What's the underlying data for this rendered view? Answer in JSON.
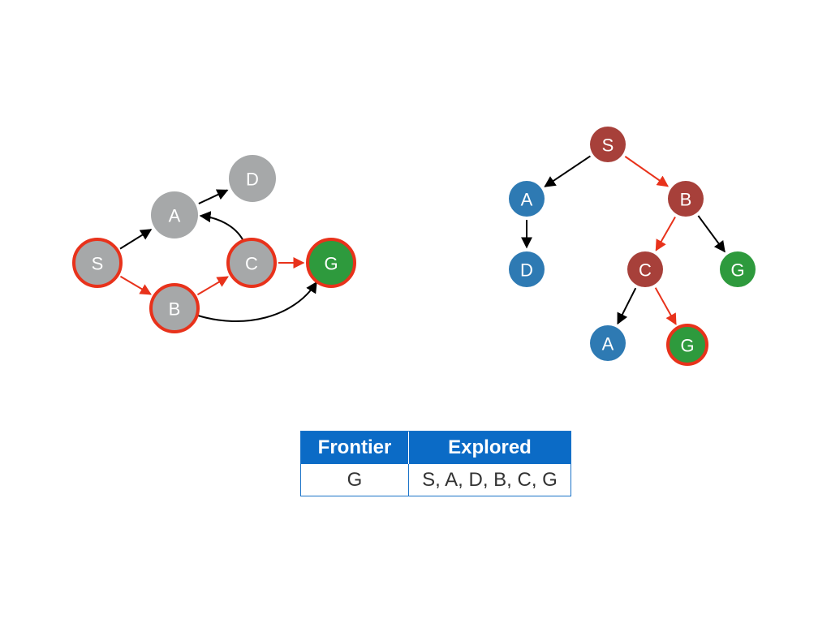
{
  "colors": {
    "graph_node": "#a6a8a9",
    "visited_outline": "#e8321b",
    "goal": "#2e9a3d",
    "tree_expanded": "#a7403a",
    "tree_frontier": "#2e7ab3",
    "edge": "#000000",
    "path_edge": "#e8321b",
    "table_header": "#0b6bc6"
  },
  "graph": {
    "nodes": [
      {
        "id": "S",
        "label": "S",
        "color": "graph_node",
        "highlight": true
      },
      {
        "id": "A",
        "label": "A",
        "color": "graph_node",
        "highlight": false
      },
      {
        "id": "D",
        "label": "D",
        "color": "graph_node",
        "highlight": false
      },
      {
        "id": "B",
        "label": "B",
        "color": "graph_node",
        "highlight": true
      },
      {
        "id": "C",
        "label": "C",
        "color": "graph_node",
        "highlight": true
      },
      {
        "id": "G",
        "label": "G",
        "color": "goal",
        "highlight": true
      }
    ],
    "edges": [
      {
        "from": "S",
        "to": "A",
        "path": false
      },
      {
        "from": "A",
        "to": "D",
        "path": false
      },
      {
        "from": "C",
        "to": "A",
        "path": false,
        "curved": true
      },
      {
        "from": "S",
        "to": "B",
        "path": true
      },
      {
        "from": "B",
        "to": "C",
        "path": true
      },
      {
        "from": "C",
        "to": "G",
        "path": true
      },
      {
        "from": "B",
        "to": "G",
        "path": false,
        "curved": true
      }
    ]
  },
  "tree": {
    "nodes": [
      {
        "id": "t_S",
        "label": "S",
        "color": "tree_expanded",
        "highlight": false
      },
      {
        "id": "t_A1",
        "label": "A",
        "color": "tree_frontier",
        "highlight": false
      },
      {
        "id": "t_B",
        "label": "B",
        "color": "tree_expanded",
        "highlight": false
      },
      {
        "id": "t_D",
        "label": "D",
        "color": "tree_frontier",
        "highlight": false
      },
      {
        "id": "t_C",
        "label": "C",
        "color": "tree_expanded",
        "highlight": false
      },
      {
        "id": "t_G1",
        "label": "G",
        "color": "goal",
        "highlight": false
      },
      {
        "id": "t_A2",
        "label": "A",
        "color": "tree_frontier",
        "highlight": false
      },
      {
        "id": "t_G2",
        "label": "G",
        "color": "goal",
        "highlight": true
      }
    ],
    "edges": [
      {
        "from": "t_S",
        "to": "t_A1",
        "path": false
      },
      {
        "from": "t_S",
        "to": "t_B",
        "path": true
      },
      {
        "from": "t_A1",
        "to": "t_D",
        "path": false
      },
      {
        "from": "t_B",
        "to": "t_C",
        "path": true
      },
      {
        "from": "t_B",
        "to": "t_G1",
        "path": false
      },
      {
        "from": "t_C",
        "to": "t_A2",
        "path": false
      },
      {
        "from": "t_C",
        "to": "t_G2",
        "path": true
      }
    ]
  },
  "table": {
    "headers": [
      "Frontier",
      "Explored"
    ],
    "row": [
      "G",
      "S, A, D, B, C, G"
    ]
  }
}
